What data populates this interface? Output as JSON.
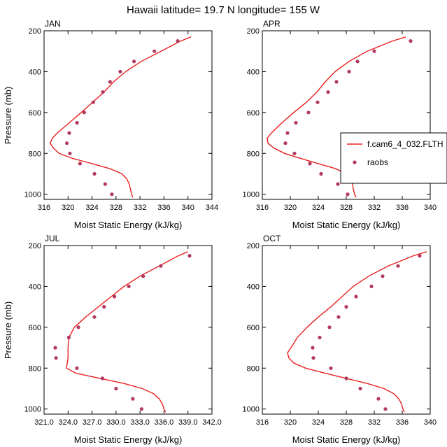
{
  "figure_title": "Hawaii  latitude= 19.7 N longitude= 155 W",
  "legend": {
    "model_label": "f.cam6_4_032.FLTH",
    "obs_label": "raobs",
    "line_color": "#e8211e",
    "marker_color": "#b2395f"
  },
  "chart_data": [
    {
      "type": "line",
      "title": "JAN",
      "xlabel": "Moist Static Energy (kJ/kg)",
      "ylabel": "Pressure (mb)",
      "xlim": [
        316,
        344
      ],
      "ylim": [
        1025,
        200
      ],
      "xticks": [
        316,
        320,
        324,
        328,
        332,
        336,
        340,
        344
      ],
      "xtick_labels": [
        "316",
        "320",
        "324",
        "328",
        "332",
        "336",
        "340",
        "344"
      ],
      "yticks": [
        200,
        400,
        600,
        800,
        1000
      ],
      "ytick_labels": [
        "200",
        "400",
        "600",
        "800",
        "1000"
      ],
      "model": {
        "pressure": [
          230,
          250,
          300,
          350,
          400,
          450,
          500,
          550,
          600,
          650,
          700,
          725,
          750,
          775,
          800,
          825,
          850,
          875,
          900,
          925,
          950,
          975,
          1000,
          1015
        ],
        "mse": [
          340.5,
          338.8,
          335.5,
          332.2,
          329.6,
          327.6,
          326.0,
          324.1,
          322.2,
          320.2,
          318.2,
          317.4,
          317.0,
          317.6,
          318.5,
          320.8,
          324.0,
          327.0,
          329.0,
          329.8,
          330.2,
          330.4,
          330.6,
          330.8
        ]
      },
      "obs": {
        "pressure": [
          250,
          300,
          350,
          400,
          450,
          500,
          550,
          600,
          650,
          700,
          750,
          800,
          850,
          900,
          950,
          1000
        ],
        "mse": [
          338.3,
          334.4,
          331.0,
          328.7,
          327.0,
          325.8,
          324.2,
          322.7,
          321.5,
          320.2,
          319.8,
          320.3,
          322.0,
          324.4,
          326.2,
          327.3
        ]
      }
    },
    {
      "type": "line",
      "title": "APR",
      "xlabel": "Moist Static Energy (kJ/kg)",
      "ylabel": "Pressure (mb)",
      "xlim": [
        316,
        340
      ],
      "ylim": [
        1025,
        200
      ],
      "xticks": [
        316,
        320,
        324,
        328,
        332,
        336,
        340
      ],
      "xtick_labels": [
        "316",
        "320",
        "324",
        "328",
        "332",
        "336",
        "340"
      ],
      "yticks": [
        200,
        400,
        600,
        800,
        1000
      ],
      "ytick_labels": [
        "200",
        "400",
        "600",
        "800",
        "1000"
      ],
      "model": {
        "pressure": [
          230,
          250,
          300,
          350,
          400,
          450,
          500,
          550,
          600,
          650,
          700,
          725,
          750,
          775,
          800,
          825,
          850,
          875,
          900,
          925,
          950,
          975,
          1000,
          1015
        ],
        "mse": [
          336.5,
          334.6,
          331.0,
          328.4,
          326.4,
          325.0,
          323.8,
          322.3,
          320.5,
          318.8,
          317.3,
          316.7,
          316.8,
          317.7,
          319.2,
          321.5,
          324.0,
          326.5,
          328.0,
          328.6,
          328.9,
          329.0,
          329.2,
          329.4
        ]
      },
      "obs": {
        "pressure": [
          250,
          300,
          350,
          400,
          450,
          500,
          550,
          600,
          650,
          700,
          750,
          800,
          850,
          900,
          950,
          1000
        ],
        "mse": [
          337.2,
          332.0,
          329.6,
          328.4,
          326.6,
          325.4,
          323.9,
          322.6,
          320.8,
          319.6,
          319.3,
          320.6,
          322.8,
          324.4,
          326.8,
          328.2
        ]
      }
    },
    {
      "type": "line",
      "title": "JUL",
      "xlabel": "Moist Static Energy (kJ/kg)",
      "ylabel": "Pressure (mb)",
      "xlim": [
        321,
        342
      ],
      "ylim": [
        1025,
        200
      ],
      "xticks": [
        321,
        324,
        327,
        330,
        333,
        336,
        339,
        342
      ],
      "xtick_labels": [
        "321.0",
        "324.0",
        "327.0",
        "330.0",
        "333.0",
        "336.0",
        "339.0",
        "342.0"
      ],
      "yticks": [
        200,
        400,
        600,
        800,
        1000
      ],
      "ytick_labels": [
        "200",
        "400",
        "600",
        "800",
        "1000"
      ],
      "model": {
        "pressure": [
          230,
          250,
          300,
          350,
          400,
          450,
          500,
          550,
          600,
          650,
          700,
          750,
          800,
          825,
          850,
          875,
          900,
          925,
          950,
          975,
          1000,
          1015
        ],
        "mse": [
          339.0,
          337.8,
          335.4,
          333.0,
          331.0,
          329.4,
          327.8,
          326.2,
          324.8,
          324.1,
          324.0,
          324.0,
          323.8,
          325.0,
          328.0,
          331.0,
          333.3,
          334.7,
          335.4,
          335.8,
          336.0,
          336.2
        ]
      },
      "obs": {
        "pressure": [
          250,
          300,
          350,
          400,
          450,
          500,
          550,
          600,
          650,
          700,
          750,
          800,
          850,
          900,
          950,
          1000
        ],
        "mse": [
          339.2,
          335.6,
          333.4,
          331.6,
          329.8,
          328.5,
          327.3,
          325.3,
          324.1,
          322.4,
          322.5,
          325.1,
          328.3,
          330.0,
          332.1,
          333.2
        ]
      }
    },
    {
      "type": "line",
      "title": "OCT",
      "xlabel": "Moist Static Energy (kJ/kg)",
      "ylabel": "Pressure (mb)",
      "xlim": [
        316,
        340
      ],
      "ylim": [
        1025,
        200
      ],
      "xticks": [
        316,
        320,
        324,
        328,
        332,
        336,
        340
      ],
      "xtick_labels": [
        "316",
        "320",
        "324",
        "328",
        "332",
        "336",
        "340"
      ],
      "yticks": [
        200,
        400,
        600,
        800,
        1000
      ],
      "ytick_labels": [
        "200",
        "400",
        "600",
        "800",
        "1000"
      ],
      "model": {
        "pressure": [
          230,
          250,
          300,
          350,
          400,
          450,
          500,
          550,
          600,
          650,
          700,
          725,
          750,
          775,
          800,
          825,
          850,
          875,
          900,
          925,
          950,
          975,
          1000,
          1015
        ],
        "mse": [
          339.5,
          337.6,
          334.0,
          331.2,
          329.0,
          327.4,
          325.8,
          324.0,
          322.4,
          321.0,
          320.1,
          319.6,
          319.8,
          320.5,
          322.2,
          325.0,
          328.0,
          331.0,
          333.4,
          334.8,
          335.5,
          335.9,
          336.1,
          336.3
        ]
      },
      "obs": {
        "pressure": [
          250,
          300,
          350,
          400,
          450,
          500,
          550,
          600,
          650,
          700,
          750,
          800,
          850,
          900,
          950,
          1000
        ],
        "mse": [
          338.5,
          335.4,
          333.2,
          331.6,
          329.4,
          328.0,
          326.9,
          325.6,
          324.2,
          323.2,
          323.3,
          325.8,
          328.0,
          330.0,
          332.6,
          333.6
        ]
      }
    }
  ]
}
